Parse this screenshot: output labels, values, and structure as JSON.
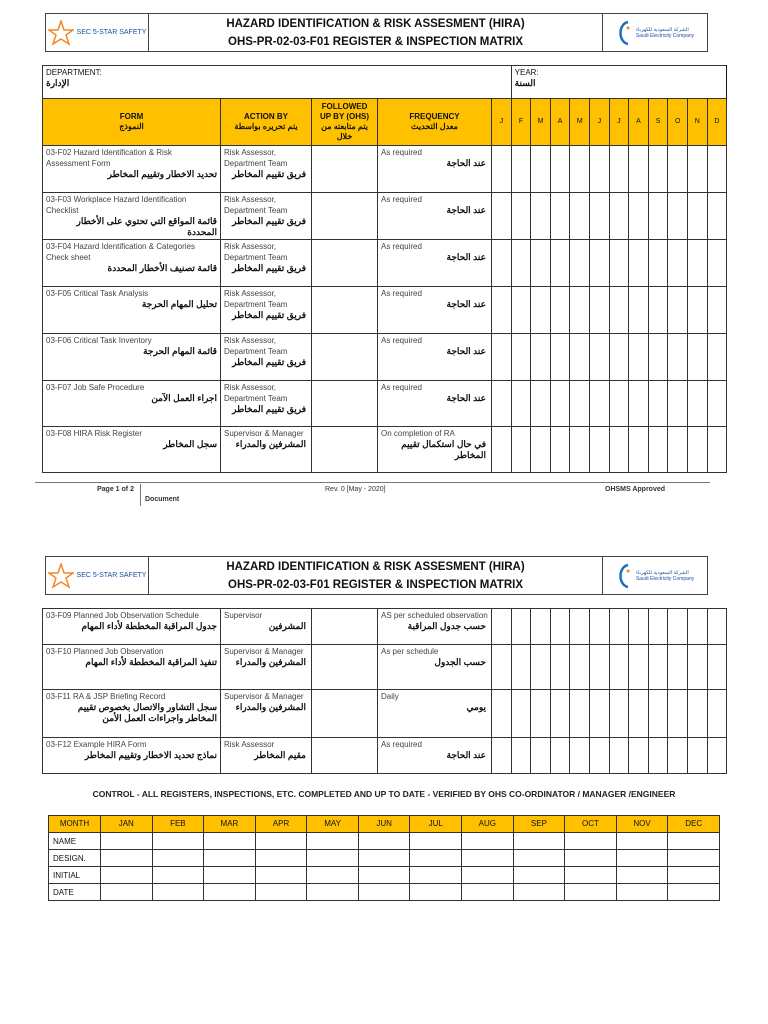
{
  "header": {
    "logo_left": "SEC 5-STAR SAFETY",
    "title_line1": "HAZARD IDENTIFICATION & RISK ASSESMENT (HIRA)",
    "title_line2": "OHS-PR-02-03-F01  REGISTER & INSPECTION MATRIX",
    "logo_right_ar": "الشركة السعودية للكهرباء",
    "logo_right_en": "Saudi Electricity Company"
  },
  "info": {
    "department_en": "DEPARTMENT:",
    "department_ar": "الإدارة",
    "year_en": "YEAR:",
    "year_ar": "السنة"
  },
  "columns": {
    "form_en": "FORM",
    "form_ar": "النموذج",
    "action_en": "ACTION BY",
    "action_ar": "يتم تحريره بواسطة",
    "followed_en": "FOLLOWED UP BY (OHS)",
    "followed_ar": "يتم متابعته من خلال",
    "freq_en": "FREQUENCY",
    "freq_ar": "معدل التحديث",
    "months": [
      "J",
      "F",
      "M",
      "A",
      "M",
      "J",
      "J",
      "A",
      "S",
      "O",
      "N",
      "D"
    ]
  },
  "rows_page1": [
    {
      "form_en": "03-F02 Hazard Identification & Risk Assessment Form",
      "form_ar": "تحديد الاخطار وتقييم المخاطر",
      "action_en": "Risk Assessor, Department Team",
      "action_ar": "فريق تقييم المخاطر",
      "freq_en": "As required",
      "freq_ar": "عند الحاجة"
    },
    {
      "form_en": "03-F03 Workplace Hazard Identification Checklist",
      "form_ar": "قائمة المواقع التي تحتوي على الأخطار المحددة",
      "action_en": "Risk Assessor, Department Team",
      "action_ar": "فريق تقييم المخاطر",
      "freq_en": "As required",
      "freq_ar": "عند الحاجة"
    },
    {
      "form_en": "03-F04 Hazard Identification & Categories Check sheet",
      "form_ar": "قائمة تصنيف الأخطار المحددة",
      "action_en": "Risk Assessor, Department Team",
      "action_ar": "فريق تقييم المخاطر",
      "freq_en": "As required",
      "freq_ar": "عند الحاجة"
    },
    {
      "form_en": "03-F05 Critical Task Analysis",
      "form_ar": "تحليل المهام الحرجة",
      "action_en": "Risk Assessor, Department Team",
      "action_ar": "فريق تقييم المخاطر",
      "freq_en": "As required",
      "freq_ar": "عند الحاجة"
    },
    {
      "form_en": "03-F06 Critical Task Inventory",
      "form_ar": "قائمة المهام الحرجة",
      "action_en": "Risk Assessor, Department Team",
      "action_ar": "فريق تقييم المخاطر",
      "freq_en": "As required",
      "freq_ar": "عند الحاجة"
    },
    {
      "form_en": "03-F07 Job Safe Procedure",
      "form_ar": "اجراء العمل الآمن",
      "action_en": "Risk Assessor, Department Team",
      "action_ar": "فريق تقييم المخاطر",
      "freq_en": "As required",
      "freq_ar": "عند الحاجة"
    },
    {
      "form_en": "03-F08 HIRA Risk Register",
      "form_ar": "سجل  المخاطر",
      "action_en": "Supervisor & Manager",
      "action_ar": "المشرفين والمدراء",
      "freq_en": "On completion of RA",
      "freq_ar": "في حال استكمال تقييم المخاطر"
    }
  ],
  "footer": {
    "page": "Page 1 of 2",
    "document": "Document",
    "rev": "Rev. 0 [May - 2020]",
    "approved": "OHSMS  Approved"
  },
  "rows_page2": [
    {
      "form_en": "03-F09 Planned Job Observation Schedule",
      "form_ar": "جدول المراقبة المخططة لأداء المهام",
      "action_en": "Supervisor",
      "action_ar": "المشرفين",
      "freq_en": "AS per scheduled observation",
      "freq_ar": "حسب جدول المراقبة"
    },
    {
      "form_en": "03-F10 Planned Job Observation",
      "form_ar": "تنفيذ المراقبة المخططة لأداء المهام",
      "action_en": "Supervisor & Manager",
      "action_ar": "المشرفين والمدراء",
      "freq_en": "As per schedule",
      "freq_ar": "حسب الجدول"
    },
    {
      "form_en": "03-F11 RA & JSP Briefing Record",
      "form_ar": "سجل التشاور والاتصال بخصوص تقييم المخاطر واجراءات العمل الأمن",
      "action_en": "Supervisor & Manager",
      "action_ar": "المشرفين والمدراء",
      "freq_en": "Daily",
      "freq_ar": "يومي"
    },
    {
      "form_en": "03-F12 Example  HIRA Form",
      "form_ar": "نماذج تحديد الاخطار وتقييم المخاطر",
      "action_en": "Risk Assessor",
      "action_ar": "مقيم المخاطر",
      "freq_en": "As required",
      "freq_ar": "عند الحاجة"
    }
  ],
  "control": {
    "title": "CONTROL - ALL REGISTERS, INSPECTIONS, ETC. COMPLETED AND UP TO DATE - VERIFIED BY OHS CO-ORDINATOR / MANAGER /ENGINEER",
    "month_label": "MONTH",
    "months": [
      "JAN",
      "FEB",
      "MAR",
      "APR",
      "MAY",
      "JUN",
      "JUL",
      "AUG",
      "SEP",
      "OCT",
      "NOV",
      "DEC"
    ],
    "row_labels": [
      "NAME",
      "DESIGN.",
      "INITIAL",
      "DATE"
    ]
  },
  "colors": {
    "header_fill": "#FFC000",
    "border": "#333333"
  }
}
